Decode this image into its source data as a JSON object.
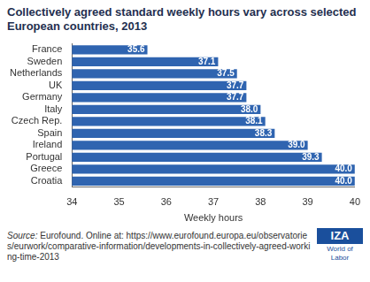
{
  "chart_data": {
    "type": "bar",
    "orientation": "horizontal",
    "title": "Collectively agreed standard weekly hours vary across selected European countries, 2013",
    "categories": [
      "France",
      "Sweden",
      "Netherlands",
      "UK",
      "Germany",
      "Italy",
      "Czech Rep.",
      "Spain",
      "Ireland",
      "Portugal",
      "Greece",
      "Croatia"
    ],
    "values": [
      35.6,
      37.1,
      37.5,
      37.7,
      37.7,
      38.0,
      38.1,
      38.3,
      39.0,
      39.3,
      40.0,
      40.0
    ],
    "value_labels": [
      "35.6",
      "37.1",
      "37.5",
      "37.7",
      "37.7",
      "38.0",
      "38.1",
      "38.3",
      "39.0",
      "39.3",
      "40.0",
      "40.0"
    ],
    "data_labels": true,
    "color": "#2f64b0",
    "xlabel": "Weekly hours",
    "xlim": [
      34,
      40
    ],
    "xticks": [
      34,
      35,
      36,
      37,
      38,
      39,
      40
    ],
    "grid": false,
    "source_label": "Source:",
    "source": "Eurofound. Online at: https://www.eurofound.europa.eu/observatories/eurwork/comparative-information/developments-in-collectively-agreed-working-time-2013",
    "logo": {
      "main": "IZA",
      "sub": "World of Labor"
    }
  }
}
